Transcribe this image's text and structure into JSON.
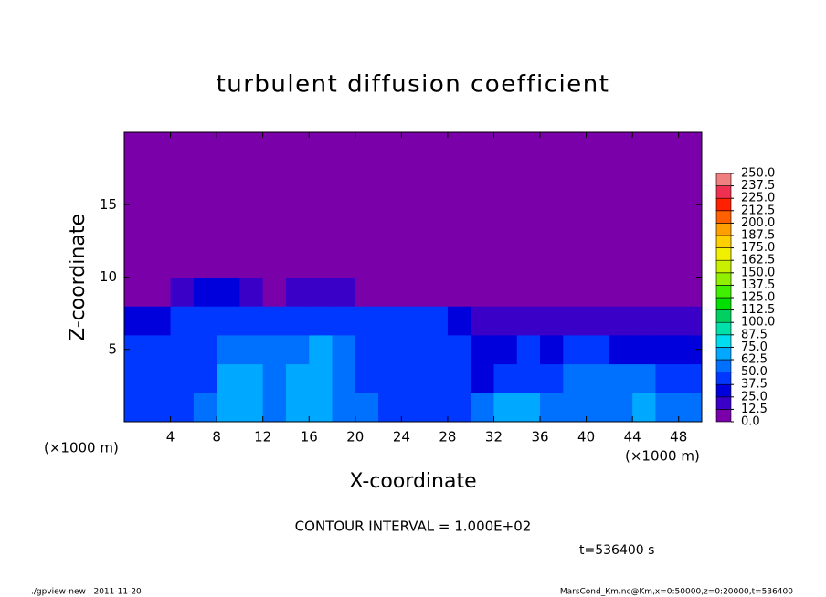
{
  "chart_data": {
    "type": "heatmap",
    "title": "turbulent diffusion coefficient",
    "x_label": "X-coordinate",
    "y_label": "Z-coordinate",
    "x_unit": "(×1000 m)",
    "x_unit_right": "(×1000 m)",
    "annotation": "CONTOUR INTERVAL = 1.000E+02",
    "time_label": "t=536400 s",
    "footer_left": "./gpview-new   2011-11-20",
    "footer_right": "MarsCond_Km.nc@Km,x=0:50000,z=0:20000,t=536400",
    "xlim": [
      0,
      50
    ],
    "ylim": [
      0,
      20
    ],
    "xticks": [
      4,
      8,
      12,
      16,
      20,
      24,
      28,
      32,
      36,
      40,
      44,
      48
    ],
    "yticks": [
      5,
      10,
      15
    ],
    "x_edges": [
      0,
      2,
      4,
      6,
      8,
      10,
      12,
      14,
      16,
      18,
      20,
      22,
      24,
      26,
      28,
      30,
      32,
      34,
      36,
      38,
      40,
      42,
      44,
      46,
      48,
      50
    ],
    "y_edges": [
      0,
      2,
      4,
      6,
      8,
      10,
      20
    ],
    "values": [
      [
        37.5,
        37.5,
        37.5,
        50,
        62.5,
        62.5,
        50,
        62.5,
        62.5,
        50,
        50,
        37.5,
        37.5,
        37.5,
        37.5,
        50,
        62.5,
        62.5,
        50,
        50,
        50,
        50,
        62.5,
        50,
        50
      ],
      [
        37.5,
        37.5,
        37.5,
        37.5,
        62.5,
        62.5,
        50,
        62.5,
        62.5,
        50,
        37.5,
        37.5,
        37.5,
        37.5,
        37.5,
        25,
        37.5,
        37.5,
        37.5,
        50,
        50,
        50,
        50,
        37.5,
        37.5
      ],
      [
        37.5,
        37.5,
        37.5,
        37.5,
        50,
        50,
        50,
        50,
        62.5,
        50,
        37.5,
        37.5,
        37.5,
        37.5,
        37.5,
        25,
        25,
        37.5,
        25,
        37.5,
        37.5,
        25,
        25,
        25,
        25
      ],
      [
        25,
        25,
        37.5,
        37.5,
        37.5,
        37.5,
        37.5,
        37.5,
        37.5,
        37.5,
        37.5,
        37.5,
        37.5,
        37.5,
        25,
        12.5,
        12.5,
        12.5,
        12.5,
        12.5,
        12.5,
        12.5,
        12.5,
        12.5,
        12.5
      ],
      [
        0,
        0,
        12.5,
        25,
        25,
        12.5,
        0,
        12.5,
        12.5,
        12.5,
        0,
        0,
        0,
        0,
        0,
        0,
        0,
        0,
        0,
        0,
        0,
        0,
        0,
        0,
        0
      ],
      [
        0,
        0,
        0,
        0,
        0,
        0,
        0,
        0,
        0,
        0,
        0,
        0,
        0,
        0,
        0,
        0,
        0,
        0,
        0,
        0,
        0,
        0,
        0,
        0,
        0
      ]
    ],
    "colorbar_ticks": [
      {
        "value": 0,
        "label": "0.0"
      },
      {
        "value": 12.5,
        "label": "12.5"
      },
      {
        "value": 25,
        "label": "25.0"
      },
      {
        "value": 37.5,
        "label": "37.5"
      },
      {
        "value": 50,
        "label": "50.0"
      },
      {
        "value": 62.5,
        "label": "62.5"
      },
      {
        "value": 75,
        "label": "75.0"
      },
      {
        "value": 87.5,
        "label": "87.5"
      },
      {
        "value": 100,
        "label": "100.0"
      },
      {
        "value": 112.5,
        "label": "112.5"
      },
      {
        "value": 125,
        "label": "125.0"
      },
      {
        "value": 137.5,
        "label": "137.5"
      },
      {
        "value": 150,
        "label": "150.0"
      },
      {
        "value": 162.5,
        "label": "162.5"
      },
      {
        "value": 175,
        "label": "175.0"
      },
      {
        "value": 187.5,
        "label": "187.5"
      },
      {
        "value": 200,
        "label": "200.0"
      },
      {
        "value": 212.5,
        "label": "212.5"
      },
      {
        "value": 225,
        "label": "225.0"
      },
      {
        "value": 237.5,
        "label": "237.5"
      },
      {
        "value": 250,
        "label": "250.0"
      }
    ],
    "colors": [
      "#7a00aa",
      "#3a00c8",
      "#0000dc",
      "#0038ff",
      "#0070ff",
      "#00a8ff",
      "#00dcf0",
      "#00e0a8",
      "#00d060",
      "#00e000",
      "#40f000",
      "#90f000",
      "#c8f000",
      "#f0f000",
      "#ffd000",
      "#ffa000",
      "#ff6000",
      "#ff2000",
      "#f03050",
      "#f08080"
    ]
  }
}
